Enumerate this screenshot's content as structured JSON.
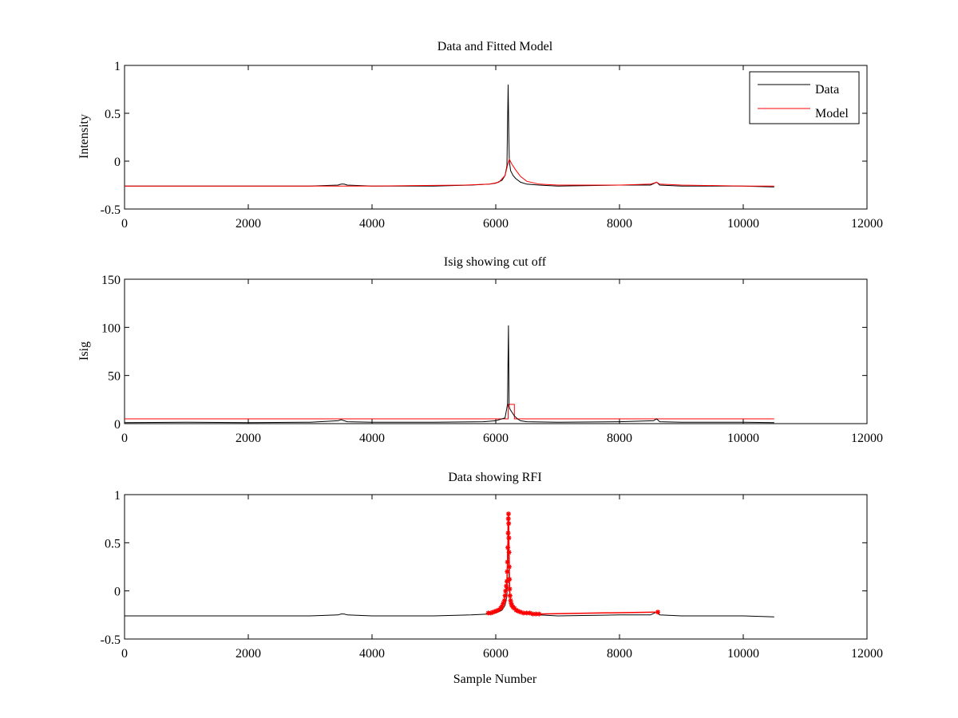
{
  "colors": {
    "data": "#000000",
    "model": "#ff0000",
    "rfi": "#ff0000",
    "axes": "#000000",
    "background": "#ffffff"
  },
  "chart_data": [
    {
      "type": "line",
      "title": "Data and Fitted Model",
      "xlabel": "",
      "ylabel": "Intensity",
      "xlim": [
        0,
        12000
      ],
      "ylim": [
        -0.5,
        1
      ],
      "xticks": [
        0,
        2000,
        4000,
        6000,
        8000,
        10000,
        12000
      ],
      "yticks": [
        -0.5,
        0,
        0.5,
        1
      ],
      "ytick_labels": [
        "-0.5",
        "0",
        "0.5",
        "1"
      ],
      "legend": {
        "position": "top-right",
        "entries": [
          "Data",
          "Model"
        ]
      },
      "series": [
        {
          "name": "Data",
          "color": "#000000",
          "x": [
            0,
            1000,
            2000,
            3000,
            3450,
            3500,
            3550,
            3600,
            4000,
            5000,
            5600,
            5900,
            6000,
            6100,
            6150,
            6180,
            6200,
            6210,
            6220,
            6240,
            6280,
            6320,
            6400,
            6500,
            6700,
            7000,
            8000,
            8500,
            8600,
            8650,
            9000,
            10000,
            10500
          ],
          "y": [
            -0.26,
            -0.26,
            -0.26,
            -0.26,
            -0.25,
            -0.24,
            -0.24,
            -0.25,
            -0.26,
            -0.26,
            -0.25,
            -0.24,
            -0.23,
            -0.2,
            -0.15,
            -0.05,
            0.8,
            0.3,
            0.0,
            -0.1,
            -0.15,
            -0.18,
            -0.22,
            -0.24,
            -0.25,
            -0.26,
            -0.25,
            -0.25,
            -0.22,
            -0.25,
            -0.26,
            -0.26,
            -0.27
          ]
        },
        {
          "name": "Model",
          "color": "#ff0000",
          "x": [
            0,
            2000,
            4000,
            5500,
            5900,
            6050,
            6150,
            6200,
            6220,
            6260,
            6320,
            6400,
            6500,
            6700,
            7000,
            8000,
            8500,
            8600,
            8650,
            9000,
            10000,
            10500
          ],
          "y": [
            -0.26,
            -0.26,
            -0.26,
            -0.25,
            -0.24,
            -0.22,
            -0.15,
            -0.02,
            0.02,
            -0.03,
            -0.09,
            -0.16,
            -0.21,
            -0.24,
            -0.25,
            -0.25,
            -0.24,
            -0.22,
            -0.24,
            -0.25,
            -0.26,
            -0.26
          ]
        }
      ]
    },
    {
      "type": "line",
      "title": "Isig showing cut off",
      "xlabel": "",
      "ylabel": "Isig",
      "xlim": [
        0,
        12000
      ],
      "ylim": [
        0,
        150
      ],
      "xticks": [
        0,
        2000,
        4000,
        6000,
        8000,
        10000,
        12000
      ],
      "yticks": [
        0,
        50,
        100,
        150
      ],
      "ytick_labels": [
        "0",
        "50",
        "100",
        "150"
      ],
      "series": [
        {
          "color": "#ff0000",
          "x": [
            0,
            6200,
            6200,
            6300,
            6300,
            10500
          ],
          "y": [
            5,
            5,
            20,
            20,
            5,
            5
          ]
        },
        {
          "color": "#000000",
          "x": [
            0,
            1000,
            2000,
            3000,
            3450,
            3500,
            3600,
            4000,
            5000,
            5800,
            6000,
            6150,
            6190,
            6205,
            6215,
            6230,
            6260,
            6300,
            6350,
            6400,
            6500,
            7000,
            8000,
            8550,
            8600,
            8650,
            9000,
            10000,
            10500
          ],
          "y": [
            1,
            1.5,
            1,
            1.5,
            3,
            4,
            2,
            1.5,
            1.5,
            2,
            3,
            6,
            20,
            102,
            18,
            15,
            12,
            8,
            5,
            3,
            2,
            1.5,
            2,
            3,
            5,
            2,
            1.5,
            1.5,
            1
          ]
        }
      ]
    },
    {
      "type": "line",
      "title": "Data showing RFI",
      "xlabel": "Sample Number",
      "ylabel": "",
      "xlim": [
        0,
        12000
      ],
      "ylim": [
        -0.5,
        1
      ],
      "xticks": [
        0,
        2000,
        4000,
        6000,
        8000,
        10000,
        12000
      ],
      "yticks": [
        -0.5,
        0,
        0.5,
        1
      ],
      "ytick_labels": [
        "-0.5",
        "0",
        "0.5",
        "1"
      ],
      "series": [
        {
          "color": "#000000",
          "x": [
            0,
            1000,
            2000,
            3000,
            3450,
            3500,
            3550,
            3600,
            4000,
            5000,
            5600,
            5900,
            6000,
            6100,
            6150,
            6180,
            6200,
            6210,
            6220,
            6240,
            6280,
            6320,
            6400,
            6500,
            6700,
            7000,
            8000,
            8500,
            8600,
            8650,
            9000,
            10000,
            10500
          ],
          "y": [
            -0.26,
            -0.26,
            -0.26,
            -0.26,
            -0.25,
            -0.24,
            -0.24,
            -0.25,
            -0.26,
            -0.26,
            -0.25,
            -0.24,
            -0.23,
            -0.2,
            -0.15,
            -0.05,
            0.8,
            0.3,
            0.0,
            -0.1,
            -0.15,
            -0.18,
            -0.22,
            -0.24,
            -0.25,
            -0.26,
            -0.25,
            -0.25,
            -0.22,
            -0.25,
            -0.26,
            -0.26,
            -0.27
          ]
        },
        {
          "color": "#ff0000",
          "marker": "*",
          "x": [
            5880,
            5920,
            5960,
            6000,
            6040,
            6080,
            6100,
            6120,
            6140,
            6150,
            6160,
            6170,
            6180,
            6185,
            6190,
            6195,
            6200,
            6203,
            6206,
            6209,
            6212,
            6215,
            6218,
            6221,
            6225,
            6230,
            6240,
            6250,
            6260,
            6280,
            6300,
            6330,
            6360,
            6400,
            6450,
            6500,
            6550,
            6600,
            6650,
            6700,
            8620
          ],
          "y": [
            -0.23,
            -0.23,
            -0.22,
            -0.21,
            -0.2,
            -0.18,
            -0.16,
            -0.13,
            -0.1,
            -0.05,
            0.0,
            0.05,
            0.1,
            0.2,
            0.3,
            0.45,
            0.6,
            0.75,
            0.8,
            0.7,
            0.55,
            0.4,
            0.25,
            0.12,
            0.02,
            -0.05,
            -0.1,
            -0.13,
            -0.15,
            -0.17,
            -0.18,
            -0.2,
            -0.21,
            -0.22,
            -0.23,
            -0.23,
            -0.23,
            -0.24,
            -0.24,
            -0.24,
            -0.22
          ]
        }
      ]
    }
  ]
}
